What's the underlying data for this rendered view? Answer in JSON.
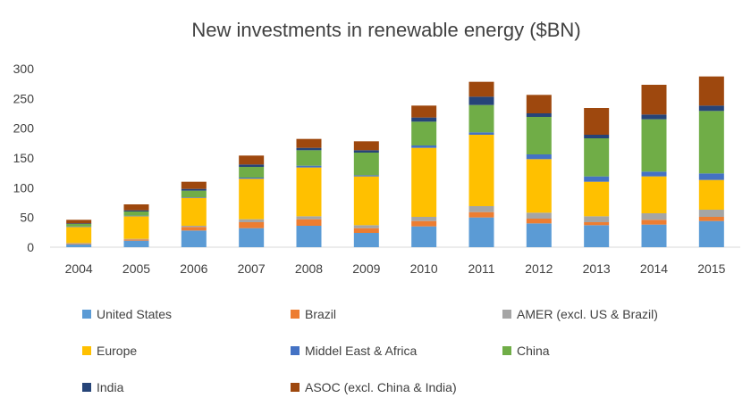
{
  "chart_data": {
    "type": "bar",
    "stacked": true,
    "title": "New investments in renewable energy ($BN)",
    "xlabel": "",
    "ylabel": "",
    "ylim": [
      0,
      300
    ],
    "yticks": [
      "0",
      "50",
      "100",
      "150",
      "200",
      "250",
      "300"
    ],
    "grid": false,
    "legend_position": "bottom",
    "categories": [
      "2004",
      "2005",
      "2006",
      "2007",
      "2008",
      "2009",
      "2010",
      "2011",
      "2012",
      "2013",
      "2014",
      "2015"
    ],
    "series": [
      {
        "name": "United States",
        "color": "#5B9BD5",
        "values": [
          5,
          11,
          28,
          32,
          36,
          24,
          35,
          50,
          40,
          37,
          38,
          44
        ]
      },
      {
        "name": "Brazil",
        "color": "#ED7D31",
        "values": [
          1,
          2,
          6,
          10,
          11,
          8,
          9,
          9,
          8,
          5,
          8,
          7
        ]
      },
      {
        "name": "AMER (excl. US & Brazil)",
        "color": "#A5A5A5",
        "values": [
          1,
          1,
          2,
          5,
          5,
          5,
          7,
          10,
          10,
          10,
          11,
          12
        ]
      },
      {
        "name": "Europe",
        "color": "#FFC000",
        "values": [
          27,
          38,
          47,
          68,
          82,
          82,
          116,
          120,
          90,
          58,
          62,
          50
        ]
      },
      {
        "name": "Middel East & Africa",
        "color": "#4472C4",
        "values": [
          1,
          1,
          1,
          2,
          3,
          2,
          4,
          4,
          8,
          9,
          8,
          11
        ]
      },
      {
        "name": "China",
        "color": "#70AD47",
        "values": [
          4,
          7,
          11,
          18,
          26,
          38,
          40,
          46,
          63,
          64,
          88,
          105
        ]
      },
      {
        "name": "India",
        "color": "#264478",
        "values": [
          1,
          2,
          3,
          4,
          4,
          4,
          7,
          14,
          6,
          6,
          8,
          9
        ]
      },
      {
        "name": "ASOC (excl. China & India)",
        "color": "#9E480E",
        "values": [
          6,
          10,
          12,
          15,
          15,
          15,
          20,
          25,
          31,
          45,
          50,
          49
        ]
      }
    ]
  }
}
